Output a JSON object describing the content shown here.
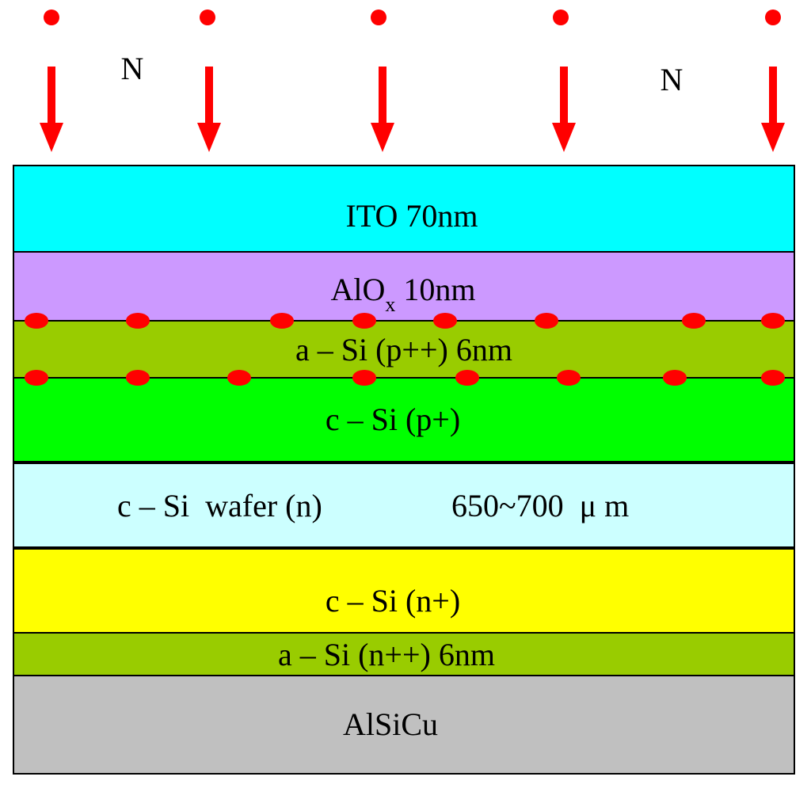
{
  "top_labels": [
    "N",
    "N"
  ],
  "layers": [
    {
      "name": "ito",
      "label": "ITO 70nm",
      "color": "#00FFFF"
    },
    {
      "name": "alox",
      "label": "AlO",
      "sub": "x",
      "label_suffix": " 10nm",
      "color": "#CC99FF"
    },
    {
      "name": "a-si-p",
      "label": "a – Si (p++) 6nm",
      "color": "#99CC00"
    },
    {
      "name": "c-si-p",
      "label": "c – Si (p+)",
      "color": "#00FF00"
    },
    {
      "name": "wafer",
      "label_left": "c – Si  wafer (n)",
      "label_right": "650~700  μ m",
      "color": "#CCFFFF"
    },
    {
      "name": "c-si-n",
      "label": "c – Si (n+)",
      "color": "#FFFF00"
    },
    {
      "name": "a-si-n",
      "label": "a – Si (n++) 6nm",
      "color": "#99CC00"
    },
    {
      "name": "alsicu",
      "label": "AlSiCu",
      "color": "#C0C0C0"
    }
  ],
  "colors": {
    "arrow": "#FF0000",
    "dot": "#FF0000",
    "border": "#000000"
  }
}
